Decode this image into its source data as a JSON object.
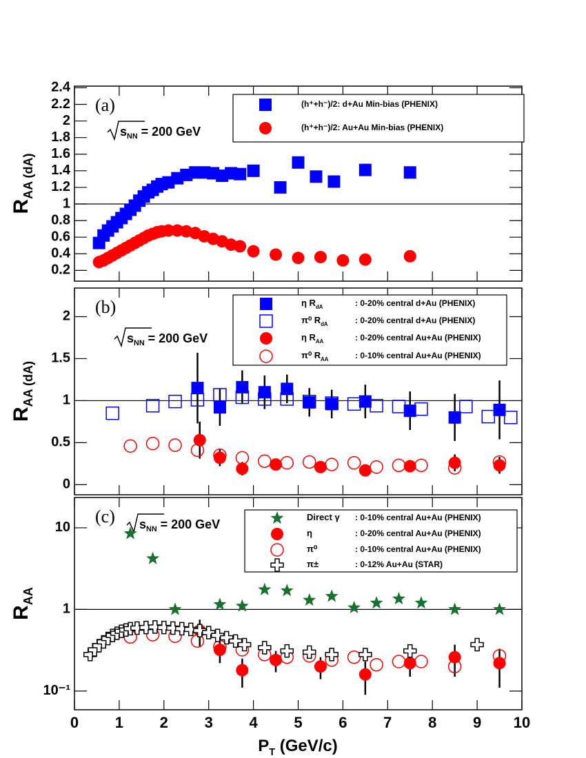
{
  "chart_data": [
    {
      "type": "scatter",
      "panel_label": "(a)",
      "ylabel": {
        "main": "R",
        "sub": "AA (dA)"
      },
      "energy": {
        "main": "s",
        "sub": "NN",
        "rest": " = 200 GeV"
      },
      "xlim": [
        0,
        10
      ],
      "xticks": [
        0,
        1,
        2,
        3,
        4,
        5,
        6,
        7,
        8,
        9,
        10
      ],
      "ylim": [
        0.07,
        2.42
      ],
      "yticks": [
        0.2,
        0.4,
        0.6,
        0.8,
        1,
        1.2,
        1.4,
        1.6,
        1.8,
        2,
        2.2,
        2.4
      ],
      "log_y": false,
      "ref_line": 1,
      "series": [
        {
          "name": "(h⁺+h⁻)/2: d+Au Min-bias (PHENIX)",
          "color": "#0000ff",
          "marker": "square",
          "x": [
            0.55,
            0.65,
            0.75,
            0.85,
            0.95,
            1.05,
            1.15,
            1.25,
            1.35,
            1.45,
            1.55,
            1.65,
            1.75,
            1.85,
            1.95,
            2.1,
            2.3,
            2.5,
            2.7,
            2.9,
            3.1,
            3.3,
            3.5,
            3.7,
            4.0,
            4.6,
            5.0,
            5.4,
            5.8,
            6.5,
            7.5
          ],
          "values": [
            0.53,
            0.62,
            0.68,
            0.73,
            0.78,
            0.83,
            0.88,
            0.93,
            0.98,
            1.04,
            1.09,
            1.14,
            1.17,
            1.21,
            1.24,
            1.26,
            1.31,
            1.35,
            1.38,
            1.38,
            1.37,
            1.34,
            1.37,
            1.36,
            1.4,
            1.2,
            1.5,
            1.33,
            1.27,
            1.41,
            1.38
          ]
        },
        {
          "name": "(h⁺+h⁻)/2: Au+Au Min-bias (PHENIX)",
          "color": "#ff0000",
          "marker": "circle",
          "x": [
            0.55,
            0.65,
            0.75,
            0.85,
            0.95,
            1.05,
            1.15,
            1.25,
            1.35,
            1.45,
            1.55,
            1.65,
            1.75,
            1.85,
            1.95,
            2.1,
            2.3,
            2.5,
            2.7,
            2.9,
            3.1,
            3.3,
            3.5,
            3.7,
            4.0,
            4.5,
            5.0,
            5.5,
            6.0,
            6.5,
            7.5
          ],
          "values": [
            0.3,
            0.32,
            0.35,
            0.38,
            0.41,
            0.44,
            0.47,
            0.5,
            0.53,
            0.56,
            0.59,
            0.62,
            0.64,
            0.66,
            0.67,
            0.68,
            0.68,
            0.67,
            0.65,
            0.61,
            0.58,
            0.55,
            0.51,
            0.49,
            0.43,
            0.39,
            0.35,
            0.36,
            0.32,
            0.33,
            0.37
          ]
        }
      ]
    },
    {
      "type": "scatter",
      "panel_label": "(b)",
      "ylabel": {
        "main": "R",
        "sub": "AA (dA)"
      },
      "energy": {
        "main": "s",
        "sub": "NN",
        "rest": " = 200 GeV"
      },
      "xlim": [
        0,
        10
      ],
      "xticks": [
        0,
        1,
        2,
        3,
        4,
        5,
        6,
        7,
        8,
        9,
        10
      ],
      "ylim": [
        -0.12,
        2.34
      ],
      "yticks": [
        0,
        0.5,
        1,
        1.5,
        2
      ],
      "log_y": false,
      "ref_line": 1,
      "series": [
        {
          "legend_prefix": "η R",
          "legend_sub": "dA",
          "name": ": 0-20% central d+Au  (PHENIX)",
          "color": "#0000ff",
          "marker": "square",
          "x": [
            2.75,
            3.25,
            3.75,
            4.25,
            4.75,
            5.25,
            5.75,
            6.5,
            7.5,
            8.5,
            9.5
          ],
          "values": [
            1.15,
            0.92,
            1.16,
            1.1,
            1.14,
            0.98,
            0.96,
            0.99,
            0.88,
            0.8,
            0.89
          ],
          "errors": [
            0.42,
            0.22,
            0.2,
            0.2,
            0.17,
            0.17,
            0.17,
            0.2,
            0.23,
            0.28,
            0.35
          ]
        },
        {
          "legend_prefix": "π⁰ R",
          "legend_sub": "dA",
          "name": ": 0-20% central d+Au  (PHENIX)",
          "color": "#0000ff",
          "marker": "square-open",
          "x": [
            0.85,
            1.75,
            2.25,
            2.75,
            3.25,
            3.75,
            4.25,
            4.75,
            5.25,
            5.75,
            6.25,
            6.75,
            7.25,
            7.75,
            8.75,
            9.25,
            9.75
          ],
          "values": [
            0.85,
            0.94,
            0.99,
            1.01,
            1.07,
            1.04,
            1.02,
            1.02,
            0.99,
            0.97,
            0.96,
            0.94,
            0.93,
            0.9,
            0.93,
            0.81,
            0.8
          ]
        },
        {
          "legend_prefix": "η R",
          "legend_sub": "AA",
          "name": ": 0-20% central Au+Au (PHENIX)",
          "color": "#ff0000",
          "marker": "circle",
          "x": [
            2.8,
            3.25,
            3.75,
            4.5,
            5.5,
            6.5,
            7.5,
            8.5,
            9.5
          ],
          "values": [
            0.53,
            0.32,
            0.19,
            0.24,
            0.21,
            0.17,
            0.22,
            0.26,
            0.23
          ],
          "errors": [
            0.22,
            0.1,
            0.08,
            0.06,
            0.06,
            0.07,
            0.07,
            0.1,
            0.1
          ]
        },
        {
          "legend_prefix": "π⁰ R",
          "legend_sub": "AA",
          "name": ": 0-10% central Au+Au (PHENIX)",
          "color": "#ff0000",
          "marker": "circle-open",
          "x": [
            1.25,
            1.75,
            2.25,
            2.75,
            3.25,
            3.75,
            4.25,
            4.75,
            5.25,
            5.75,
            6.25,
            6.75,
            7.25,
            7.75,
            8.5,
            9.5
          ],
          "values": [
            0.46,
            0.49,
            0.47,
            0.41,
            0.35,
            0.32,
            0.28,
            0.26,
            0.27,
            0.24,
            0.26,
            0.21,
            0.23,
            0.23,
            0.2,
            0.27
          ]
        }
      ]
    },
    {
      "type": "scatter",
      "panel_label": "(c)",
      "ylabel": {
        "main": "R",
        "sub": "AA"
      },
      "xlabel": {
        "main": "P",
        "sub": "T",
        "rest": " (GeV/c)"
      },
      "energy": {
        "main": "s",
        "sub": "NN",
        "rest": " = 200 GeV"
      },
      "xlim": [
        0,
        10
      ],
      "xticks": [
        0,
        1,
        2,
        3,
        4,
        5,
        6,
        7,
        8,
        9,
        10
      ],
      "ylim": [
        0.059,
        23.5
      ],
      "yticks": [
        {
          "value": 0.1,
          "label": "10⁻¹"
        },
        1,
        10
      ],
      "log_y": true,
      "ref_line": 1,
      "series": [
        {
          "legend_prefix": "Direct γ",
          "name": ": 0-10% central Au+Au (PHENIX)",
          "color": "#1a7030",
          "marker": "star",
          "x": [
            1.25,
            1.75,
            2.25,
            3.25,
            3.75,
            4.25,
            4.75,
            5.25,
            5.75,
            6.25,
            6.75,
            7.25,
            7.75,
            8.5,
            9.5
          ],
          "values": [
            8.5,
            4.2,
            1.0,
            1.15,
            1.1,
            1.75,
            1.7,
            1.3,
            1.45,
            1.05,
            1.2,
            1.35,
            1.2,
            1.0,
            1.0
          ]
        },
        {
          "legend_prefix": "η",
          "name": ": 0-20% central Au+Au (PHENIX)",
          "color": "#ff0000",
          "marker": "circle",
          "x": [
            2.8,
            3.25,
            3.75,
            4.5,
            5.5,
            6.5,
            7.5,
            8.5,
            9.5
          ],
          "values": [
            0.55,
            0.32,
            0.18,
            0.24,
            0.2,
            0.16,
            0.22,
            0.26,
            0.22
          ],
          "errors": [
            0.2,
            0.1,
            0.07,
            0.07,
            0.06,
            0.07,
            0.07,
            0.11,
            0.11
          ]
        },
        {
          "legend_prefix": "π⁰",
          "name": ": 0-10% central Au+Au (PHENIX)",
          "color": "#ff0000",
          "marker": "circle-open",
          "x": [
            1.25,
            1.75,
            2.25,
            2.75,
            3.25,
            3.75,
            4.25,
            4.75,
            5.25,
            5.75,
            6.25,
            6.75,
            7.25,
            7.75,
            8.5,
            9.5
          ],
          "values": [
            0.46,
            0.49,
            0.47,
            0.41,
            0.35,
            0.32,
            0.28,
            0.26,
            0.27,
            0.24,
            0.26,
            0.21,
            0.23,
            0.23,
            0.2,
            0.27
          ]
        },
        {
          "legend_prefix": "π±",
          "name": ": 0-12% Au+Au (STAR)",
          "color": "#000000",
          "marker": "cross-open",
          "x": [
            0.35,
            0.45,
            0.55,
            0.65,
            0.75,
            0.85,
            0.95,
            1.05,
            1.15,
            1.25,
            1.4,
            1.6,
            1.8,
            2.0,
            2.2,
            2.4,
            2.6,
            2.8,
            3.0,
            3.2,
            3.4,
            3.6,
            3.8,
            4.25,
            4.75,
            5.25,
            5.75,
            6.5,
            7.5,
            9.0
          ],
          "values": [
            0.28,
            0.32,
            0.36,
            0.4,
            0.44,
            0.48,
            0.51,
            0.54,
            0.56,
            0.58,
            0.59,
            0.6,
            0.61,
            0.6,
            0.59,
            0.58,
            0.57,
            0.55,
            0.52,
            0.48,
            0.45,
            0.41,
            0.37,
            0.34,
            0.31,
            0.3,
            0.28,
            0.28,
            0.31,
            0.37
          ]
        }
      ]
    }
  ]
}
